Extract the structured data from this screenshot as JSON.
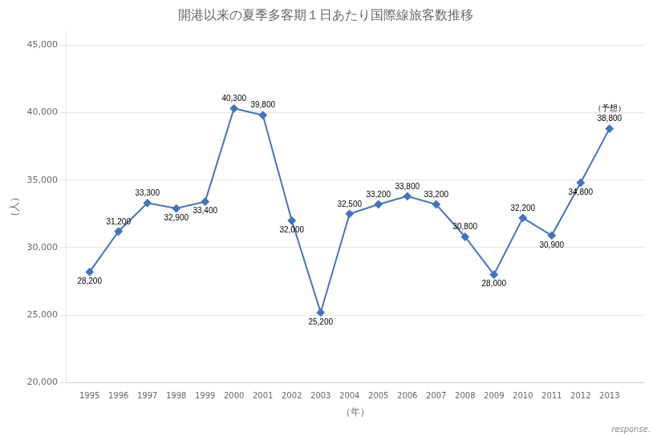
{
  "chart_data": {
    "type": "line",
    "title": "開港以来の夏季多客期１日あたり国際線旅客数推移",
    "x_label": "（年）",
    "y_label": "（人）",
    "x": [
      1995,
      1996,
      1997,
      1998,
      1999,
      2000,
      2001,
      2002,
      2003,
      2004,
      2005,
      2006,
      2007,
      2008,
      2009,
      2010,
      2011,
      2012,
      2013
    ],
    "values": [
      28200,
      31200,
      33300,
      32900,
      33400,
      40300,
      39800,
      32000,
      25200,
      32500,
      33200,
      33800,
      33200,
      30800,
      28000,
      32200,
      30900,
      34800,
      38800
    ],
    "value_labels": [
      "28,200",
      "31,200",
      "33,300",
      "32,900",
      "33,400",
      "40,300",
      "39,800",
      "32,000",
      "25,200",
      "32,500",
      "33,200",
      "33,800",
      "33,200",
      "30,800",
      "28,000",
      "32,200",
      "30,900",
      "34,800",
      "38,800"
    ],
    "data_labels": true,
    "color": "#4472C4",
    "marker": "diamond",
    "xlim": [
      1994.2,
      2014.2
    ],
    "xticks": [
      1995,
      1996,
      1997,
      1998,
      1999,
      2000,
      2001,
      2002,
      2003,
      2004,
      2005,
      2006,
      2007,
      2008,
      2009,
      2010,
      2011,
      2012,
      2013
    ],
    "ylim": [
      20000,
      46000
    ],
    "yticks": [
      {
        "value": 20000,
        "label": "20,000"
      },
      {
        "value": 25000,
        "label": "25,000"
      },
      {
        "value": 30000,
        "label": "30,000"
      },
      {
        "value": 35000,
        "label": "35,000"
      },
      {
        "value": 40000,
        "label": "40,000"
      },
      {
        "value": 45000,
        "label": "45,000"
      }
    ],
    "grid": "y",
    "annotations": [
      {
        "text": "（予想）",
        "x": 2013
      },
      {
        "text": "response."
      }
    ]
  }
}
